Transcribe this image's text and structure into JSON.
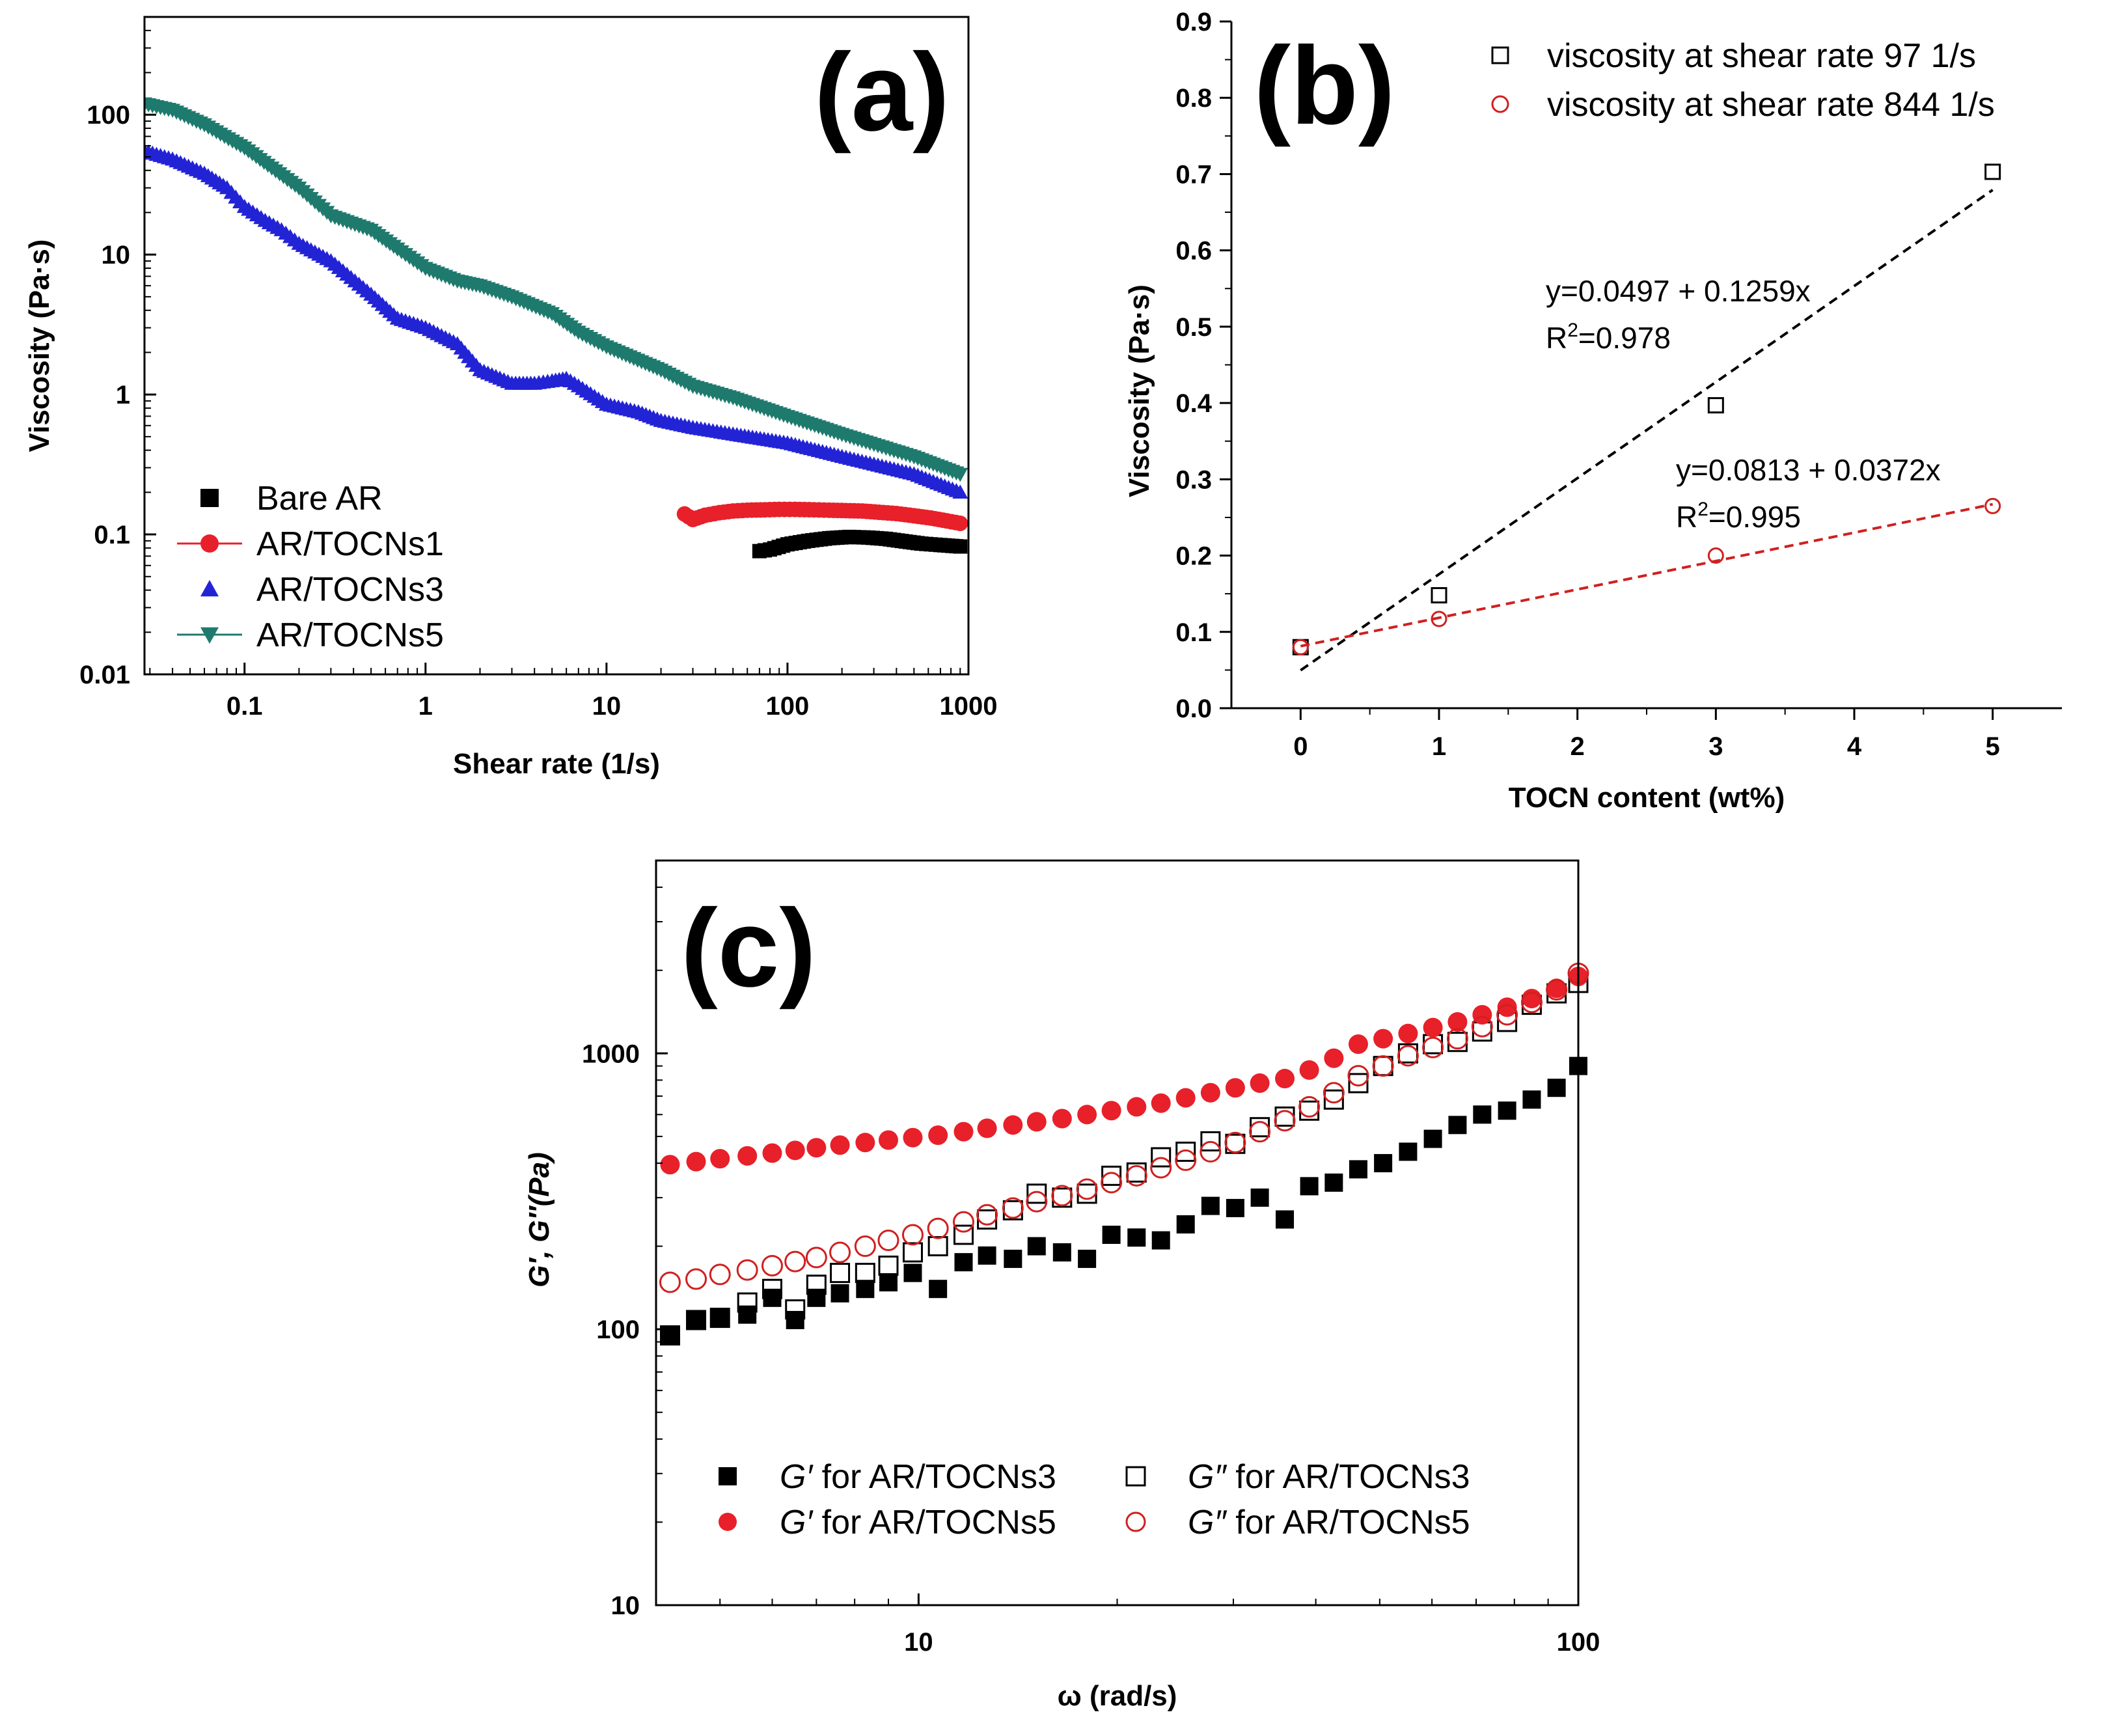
{
  "chart_data": [
    {
      "id": "a",
      "type": "line",
      "panel_label": "(a)",
      "xlabel": "Shear rate (1/s)",
      "ylabel": "Viscosity (Pa·s)",
      "xscale": "log",
      "yscale": "log",
      "xlim": [
        0.028,
        1000
      ],
      "ylim": [
        0.01,
        500
      ],
      "x_ticks": [
        0.1,
        1,
        10,
        100,
        1000
      ],
      "x_tick_labels": [
        "0.1",
        "1",
        "10",
        "100",
        "1000"
      ],
      "y_ticks": [
        0.01,
        0.1,
        1,
        10,
        100
      ],
      "y_tick_labels": [
        "0.01",
        "0.1",
        "1",
        "10",
        "100"
      ],
      "legend_position": "bottom-left",
      "series": [
        {
          "name": "Bare AR",
          "color": "#000000",
          "marker": "square",
          "x": [
            70,
            80,
            100,
            130,
            170,
            220,
            280,
            350,
            450,
            550,
            700,
            900
          ],
          "y": [
            0.076,
            0.078,
            0.085,
            0.09,
            0.094,
            0.096,
            0.095,
            0.093,
            0.089,
            0.086,
            0.084,
            0.082
          ]
        },
        {
          "name": "AR/TOCNs1",
          "color": "#e8202a",
          "marker": "circle",
          "x": [
            27,
            30,
            35,
            42,
            50,
            60,
            75,
            90,
            110,
            140,
            170,
            210,
            260,
            320,
            400,
            500,
            620,
            760,
            900
          ],
          "y": [
            0.14,
            0.128,
            0.137,
            0.143,
            0.147,
            0.149,
            0.15,
            0.151,
            0.151,
            0.15,
            0.149,
            0.148,
            0.147,
            0.144,
            0.141,
            0.136,
            0.131,
            0.125,
            0.12
          ]
        },
        {
          "name": "AR/TOCNs3",
          "color": "#2323d6",
          "marker": "triangle-up",
          "x": [
            0.028,
            0.04,
            0.06,
            0.08,
            0.1,
            0.13,
            0.16,
            0.2,
            0.3,
            0.5,
            0.7,
            1,
            1.5,
            2,
            3,
            4,
            5,
            6,
            7,
            10,
            15,
            20,
            30,
            50,
            100,
            200,
            500,
            900
          ],
          "y": [
            55,
            48,
            38,
            30,
            22,
            17.5,
            15,
            12,
            9,
            5.2,
            3.5,
            3,
            2.3,
            1.5,
            1.2,
            1.2,
            1.25,
            1.3,
            1.15,
            0.85,
            0.75,
            0.65,
            0.58,
            0.52,
            0.45,
            0.36,
            0.27,
            0.2
          ]
        },
        {
          "name": "AR/TOCNs5",
          "color": "#1f7a6e",
          "marker": "triangle-down",
          "x": [
            0.028,
            0.04,
            0.06,
            0.1,
            0.2,
            0.3,
            0.5,
            0.7,
            1,
            1.5,
            2,
            3,
            5,
            7,
            10,
            20,
            30,
            50,
            100,
            200,
            500,
            900
          ],
          "y": [
            120,
            108,
            85,
            58,
            30,
            19,
            15,
            11,
            8,
            6.5,
            6,
            5,
            3.8,
            2.8,
            2.2,
            1.5,
            1.15,
            0.95,
            0.7,
            0.52,
            0.36,
            0.27
          ]
        }
      ]
    },
    {
      "id": "b",
      "type": "scatter",
      "panel_label": "(b)",
      "xlabel": "TOCN content (wt%)",
      "ylabel": "Viscosity (Pa·s)",
      "xlim": [
        -0.5,
        5.5
      ],
      "ylim": [
        0,
        0.9
      ],
      "x_ticks": [
        0,
        1,
        2,
        3,
        4,
        5
      ],
      "x_tick_labels": [
        "0",
        "1",
        "2",
        "3",
        "4",
        "5"
      ],
      "y_ticks": [
        0.0,
        0.1,
        0.2,
        0.3,
        0.4,
        0.5,
        0.6,
        0.7,
        0.8,
        0.9
      ],
      "y_tick_labels": [
        "0.0",
        "0.1",
        "0.2",
        "0.3",
        "0.4",
        "0.5",
        "0.6",
        "0.7",
        "0.8",
        "0.9"
      ],
      "legend_position": "top-right",
      "series": [
        {
          "name": "viscosity at shear rate 97 1/s",
          "color": "#000000",
          "marker": "open-square",
          "x": [
            0,
            1,
            3,
            5
          ],
          "y": [
            0.08,
            0.148,
            0.397,
            0.703
          ],
          "fit": {
            "intercept": 0.0497,
            "slope": 0.1259,
            "equation": "y=0.0497 + 0.1259x",
            "r2_prefix": "R",
            "r2_exponent": "2",
            "r2_value": "=0.978"
          }
        },
        {
          "name": "viscosity at shear rate  844 1/s",
          "color": "#d02020",
          "marker": "open-circle",
          "x": [
            0,
            1,
            3,
            5
          ],
          "y": [
            0.08,
            0.117,
            0.2,
            0.265
          ],
          "fit": {
            "intercept": 0.0813,
            "slope": 0.0372,
            "equation": "y=0.0813 + 0.0372x",
            "r2_prefix": "R",
            "r2_exponent": "2",
            "r2_value": "=0.995"
          }
        }
      ]
    },
    {
      "id": "c",
      "type": "scatter",
      "panel_label": "(c)",
      "xlabel": "ω (rad/s)",
      "ylabel": "G′, G″(Pa)",
      "xscale": "log",
      "yscale": "log",
      "xlim": [
        4,
        100
      ],
      "ylim": [
        10,
        5000
      ],
      "x_ticks": [
        10,
        100
      ],
      "x_tick_labels": [
        "10",
        "100"
      ],
      "y_ticks": [
        10,
        100,
        1000
      ],
      "y_tick_labels": [
        "10",
        "100",
        "1000"
      ],
      "legend_position": "bottom-center",
      "series": [
        {
          "name_prefix": "G′",
          "name_suffix": " for AR/TOCNs3",
          "color": "#000000",
          "marker": "square",
          "x": [
            4.2,
            4.6,
            5,
            5.5,
            6,
            6.5,
            7,
            7.6,
            8.3,
            9,
            9.8,
            10.7,
            11.7,
            12.7,
            13.9,
            15.1,
            16.5,
            18,
            19.6,
            21.4,
            23.3,
            25.4,
            27.7,
            30.2,
            32.9,
            35.9,
            39.1,
            42.6,
            46.4,
            50.6,
            55.2,
            60.2,
            65.6,
            71.5,
            78,
            85,
            92.7,
            100
          ],
          "y": [
            95,
            108,
            110,
            113,
            130,
            108,
            130,
            135,
            140,
            148,
            160,
            140,
            175,
            185,
            180,
            200,
            190,
            180,
            220,
            215,
            210,
            240,
            280,
            275,
            300,
            250,
            330,
            340,
            380,
            400,
            440,
            490,
            550,
            600,
            620,
            680,
            750,
            900
          ]
        },
        {
          "name_prefix": "G″",
          "name_suffix": " for AR/TOCNs3",
          "color": "#000000",
          "marker": "open-square",
          "x": [
            4.2,
            4.6,
            5,
            5.5,
            6,
            6.5,
            7,
            7.6,
            8.3,
            9,
            9.8,
            10.7,
            11.7,
            12.7,
            13.9,
            15.1,
            16.5,
            18,
            19.6,
            21.4,
            23.3,
            25.4,
            27.7,
            30.2,
            32.9,
            35.9,
            39.1,
            42.6,
            46.4,
            50.6,
            55.2,
            60.2,
            65.6,
            71.5,
            78,
            85,
            92.7,
            100
          ],
          "y": [
            95,
            108,
            110,
            125,
            140,
            118,
            145,
            160,
            160,
            170,
            190,
            200,
            220,
            250,
            270,
            310,
            300,
            310,
            360,
            370,
            420,
            440,
            480,
            470,
            540,
            590,
            620,
            680,
            780,
            900,
            1000,
            1080,
            1100,
            1200,
            1300,
            1500,
            1650,
            1800
          ]
        },
        {
          "name_prefix": "G′",
          "name_suffix": " for AR/TOCNs5",
          "color": "#e8202a",
          "marker": "circle",
          "x": [
            4.2,
            4.6,
            5,
            5.5,
            6,
            6.5,
            7,
            7.6,
            8.3,
            9,
            9.8,
            10.7,
            11.7,
            12.7,
            13.9,
            15.1,
            16.5,
            18,
            19.6,
            21.4,
            23.3,
            25.4,
            27.7,
            30.2,
            32.9,
            35.9,
            39.1,
            42.6,
            46.4,
            50.6,
            55.2,
            60.2,
            65.6,
            71.5,
            78,
            85,
            92.7,
            100
          ],
          "y": [
            395,
            405,
            415,
            425,
            435,
            445,
            455,
            465,
            475,
            485,
            495,
            505,
            520,
            535,
            550,
            565,
            580,
            600,
            620,
            640,
            660,
            690,
            720,
            750,
            780,
            810,
            870,
            960,
            1080,
            1130,
            1180,
            1240,
            1300,
            1380,
            1470,
            1580,
            1720,
            1900
          ]
        },
        {
          "name_prefix": "G″",
          "name_suffix": " for AR/TOCNs5",
          "color": "#d02020",
          "marker": "open-circle",
          "x": [
            4.2,
            4.6,
            5,
            5.5,
            6,
            6.5,
            7,
            7.6,
            8.3,
            9,
            9.8,
            10.7,
            11.7,
            12.7,
            13.9,
            15.1,
            16.5,
            18,
            19.6,
            21.4,
            23.3,
            25.4,
            27.7,
            30.2,
            32.9,
            35.9,
            39.1,
            42.6,
            46.4,
            50.6,
            55.2,
            60.2,
            65.6,
            71.5,
            78,
            85,
            92.7,
            100
          ],
          "y": [
            148,
            152,
            158,
            164,
            170,
            176,
            182,
            190,
            200,
            210,
            220,
            232,
            245,
            260,
            275,
            290,
            305,
            322,
            340,
            360,
            385,
            410,
            440,
            475,
            520,
            570,
            640,
            720,
            830,
            900,
            980,
            1050,
            1130,
            1250,
            1380,
            1530,
            1700,
            1950
          ]
        }
      ]
    }
  ]
}
